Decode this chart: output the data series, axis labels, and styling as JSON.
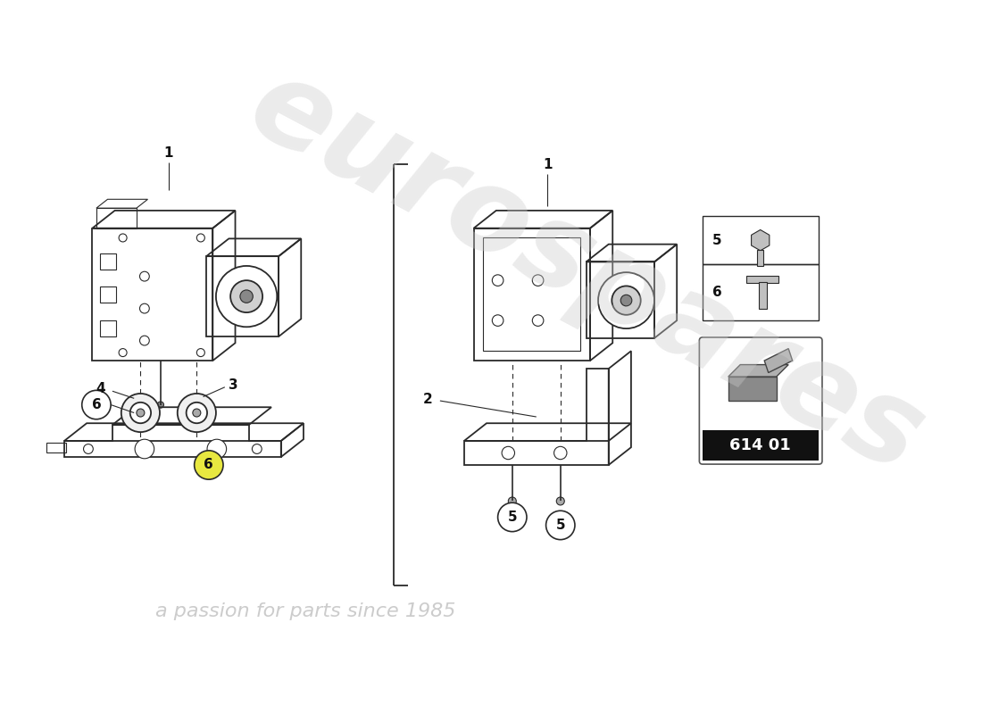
{
  "bg_color": "#ffffff",
  "line_color": "#2a2a2a",
  "fig_width": 11.0,
  "fig_height": 8.0,
  "dpi": 100,
  "watermark_text1": "eurospares",
  "watermark_text2": "a passion for parts since 1985",
  "part_number": "614 01",
  "wm_color": "#cccccc",
  "wm_alpha": 0.38
}
